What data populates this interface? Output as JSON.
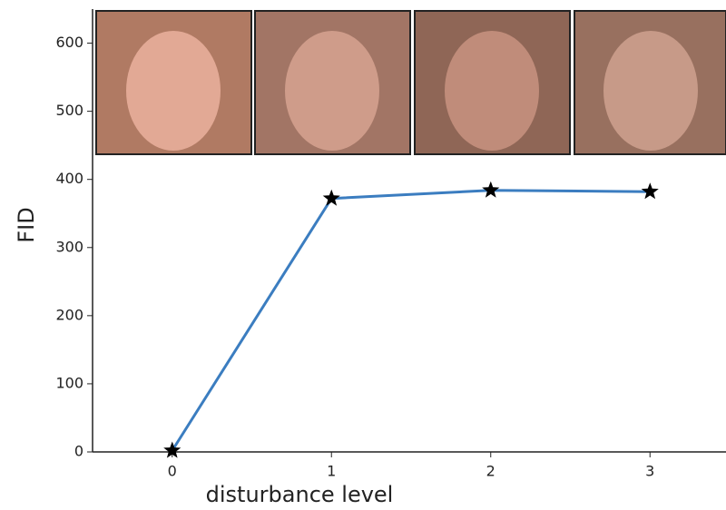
{
  "chart_data": {
    "type": "line",
    "x_label": "disturbance level",
    "y_label": "FID",
    "x": [
      0,
      1,
      2,
      3
    ],
    "series": [
      {
        "color": "#3b7dc0",
        "values": [
          2,
          372,
          384,
          382
        ]
      }
    ],
    "xlim": [
      -0.5,
      3.5
    ],
    "ylim": [
      0,
      650
    ],
    "xticks": [
      0,
      1,
      2,
      3
    ],
    "yticks": [
      0,
      100,
      200,
      300,
      400,
      500,
      600
    ]
  }
}
